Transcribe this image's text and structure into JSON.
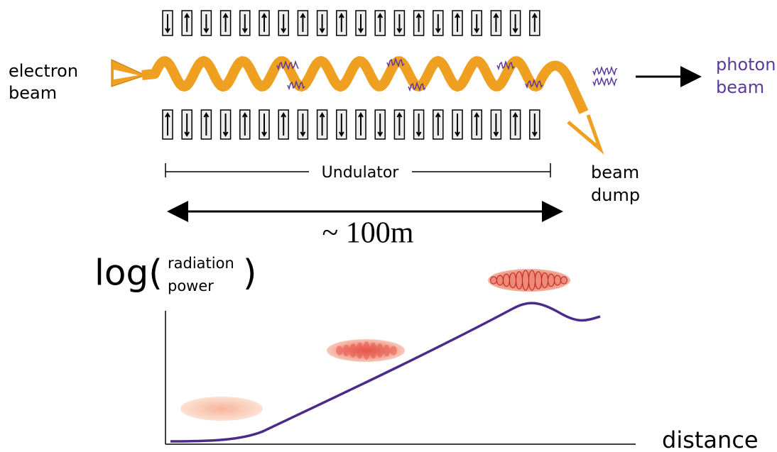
{
  "electron_beam": [
    "electron",
    "beam"
  ],
  "photon_beam": [
    "photon",
    "beam"
  ],
  "undulator": "Undulator",
  "beam_dump": [
    "beam",
    "dump"
  ],
  "length": "~ 100m",
  "y_axis": {
    "prefix": "log(",
    "lines": [
      "radiation",
      "power"
    ],
    "suffix": ")"
  },
  "x_axis": "distance"
}
